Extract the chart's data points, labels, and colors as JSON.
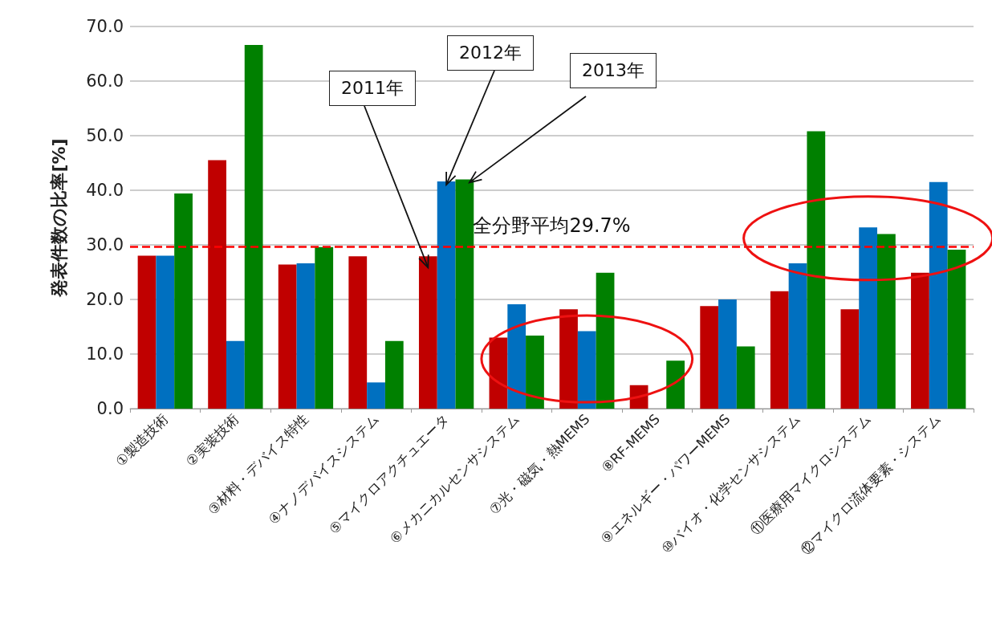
{
  "chart_data": {
    "type": "bar",
    "ylabel": "発表件数の比率[%]",
    "categories": [
      "①製造技術",
      "②実装技術",
      "③材料・デバイス特性",
      "④ナノデバイスシステム",
      "⑤マイクロアクチュエータ",
      "⑥メカニカルセンサシステム",
      "⑦光・磁気・熱MEMS",
      "⑧RF-MEMS",
      "⑨エネルギー・パワーMEMS",
      "⑩バイオ・化学センサシステム",
      "⑪医療用マイクロシステム",
      "⑫マイクロ流体要素・システム"
    ],
    "series": [
      {
        "name": "2011年",
        "color": "#c00000",
        "values": [
          28.0,
          45.5,
          26.4,
          27.9,
          27.9,
          13.0,
          18.2,
          4.3,
          18.8,
          21.5,
          18.2,
          24.9
        ]
      },
      {
        "name": "2012年",
        "color": "#0070c0",
        "values": [
          28.0,
          12.4,
          26.6,
          4.8,
          41.6,
          19.1,
          14.2,
          0,
          20.0,
          26.6,
          33.2,
          41.5
        ]
      },
      {
        "name": "2013年",
        "color": "#008000",
        "values": [
          39.4,
          66.6,
          29.6,
          12.4,
          42.0,
          13.4,
          24.9,
          8.8,
          11.4,
          50.8,
          32.0,
          29.1
        ]
      }
    ],
    "ylim": [
      0,
      70
    ],
    "yticks": [
      {
        "value": 0,
        "label": "0.0"
      },
      {
        "value": 10,
        "label": "10.0"
      },
      {
        "value": 20,
        "label": "20.0"
      },
      {
        "value": 30,
        "label": "30.0"
      },
      {
        "value": 40,
        "label": "40.0"
      },
      {
        "value": 50,
        "label": "50.0"
      },
      {
        "value": 60,
        "label": "60.0"
      },
      {
        "value": 70,
        "label": "70.0"
      }
    ],
    "ref_lines": [
      {
        "axis": "y",
        "value": 29.7,
        "label": "全分野平均29.7%",
        "color": "#ff0000",
        "line_style": "dashed"
      }
    ],
    "grid": "y",
    "legend": false
  }
}
